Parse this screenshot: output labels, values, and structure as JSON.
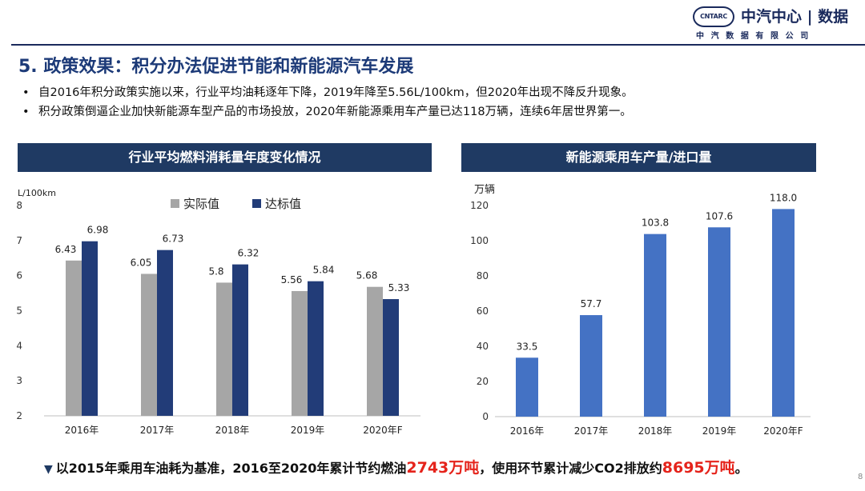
{
  "logo": {
    "mark": "CNTARC",
    "name": "中汽中心 | 数据",
    "sub": "中汽数据有限公司"
  },
  "page_title": "5. 政策效果：积分办法促进节能和新能源汽车发展",
  "bullets": [
    "自2016年积分政策实施以来，行业平均油耗逐年下降，2019年降至5.56L/100km，但2020年出现不降反升现象。",
    "积分政策倒逼企业加快新能源车型产品的市场投放，2020年新能源乘用车产量已达118万辆，连续6年居世界第一。"
  ],
  "footer": {
    "part1": "以2015年乘用车油耗为基准，2016至2020年累计节约燃油",
    "highlight1": "2743万吨",
    "part2": "，使用环节累计减少CO2排放约",
    "highlight2": "8695万吨",
    "part3": "。"
  },
  "page_number": "8",
  "colors": {
    "actual": "#a6a6a6",
    "target": "#223c78",
    "nev": "#4472c4",
    "title_bg": "#1f3a63"
  },
  "chart_data": [
    {
      "type": "bar",
      "title": "行业平均燃料消耗量年度变化情况",
      "ylabel": "L/100km",
      "categories": [
        "2016年",
        "2017年",
        "2018年",
        "2019年",
        "2020年F"
      ],
      "series": [
        {
          "name": "实际值",
          "values": [
            6.43,
            6.05,
            5.8,
            5.56,
            5.68
          ],
          "labels": [
            "6.43",
            "6.05",
            "5.8",
            "5.56",
            "5.68"
          ]
        },
        {
          "name": "达标值",
          "values": [
            6.98,
            6.73,
            6.32,
            5.84,
            5.33
          ],
          "labels": [
            "6.98",
            "6.73",
            "6.32",
            "5.84",
            "5.33"
          ]
        }
      ],
      "ylim": [
        2,
        8
      ],
      "yticks": [
        "2",
        "3",
        "4",
        "5",
        "6",
        "7",
        "8"
      ],
      "legend": "top",
      "grid": false
    },
    {
      "type": "bar",
      "title": "新能源乘用车产量/进口量",
      "ylabel": "万辆",
      "categories": [
        "2016年",
        "2017年",
        "2018年",
        "2019年",
        "2020年F"
      ],
      "values": [
        33.5,
        57.7,
        103.8,
        107.6,
        118.0
      ],
      "labels": [
        "33.5",
        "57.7",
        "103.8",
        "107.6",
        "118.0"
      ],
      "ylim": [
        0,
        120
      ],
      "yticks": [
        "0",
        "20",
        "40",
        "60",
        "80",
        "100",
        "120"
      ],
      "grid": false
    }
  ]
}
